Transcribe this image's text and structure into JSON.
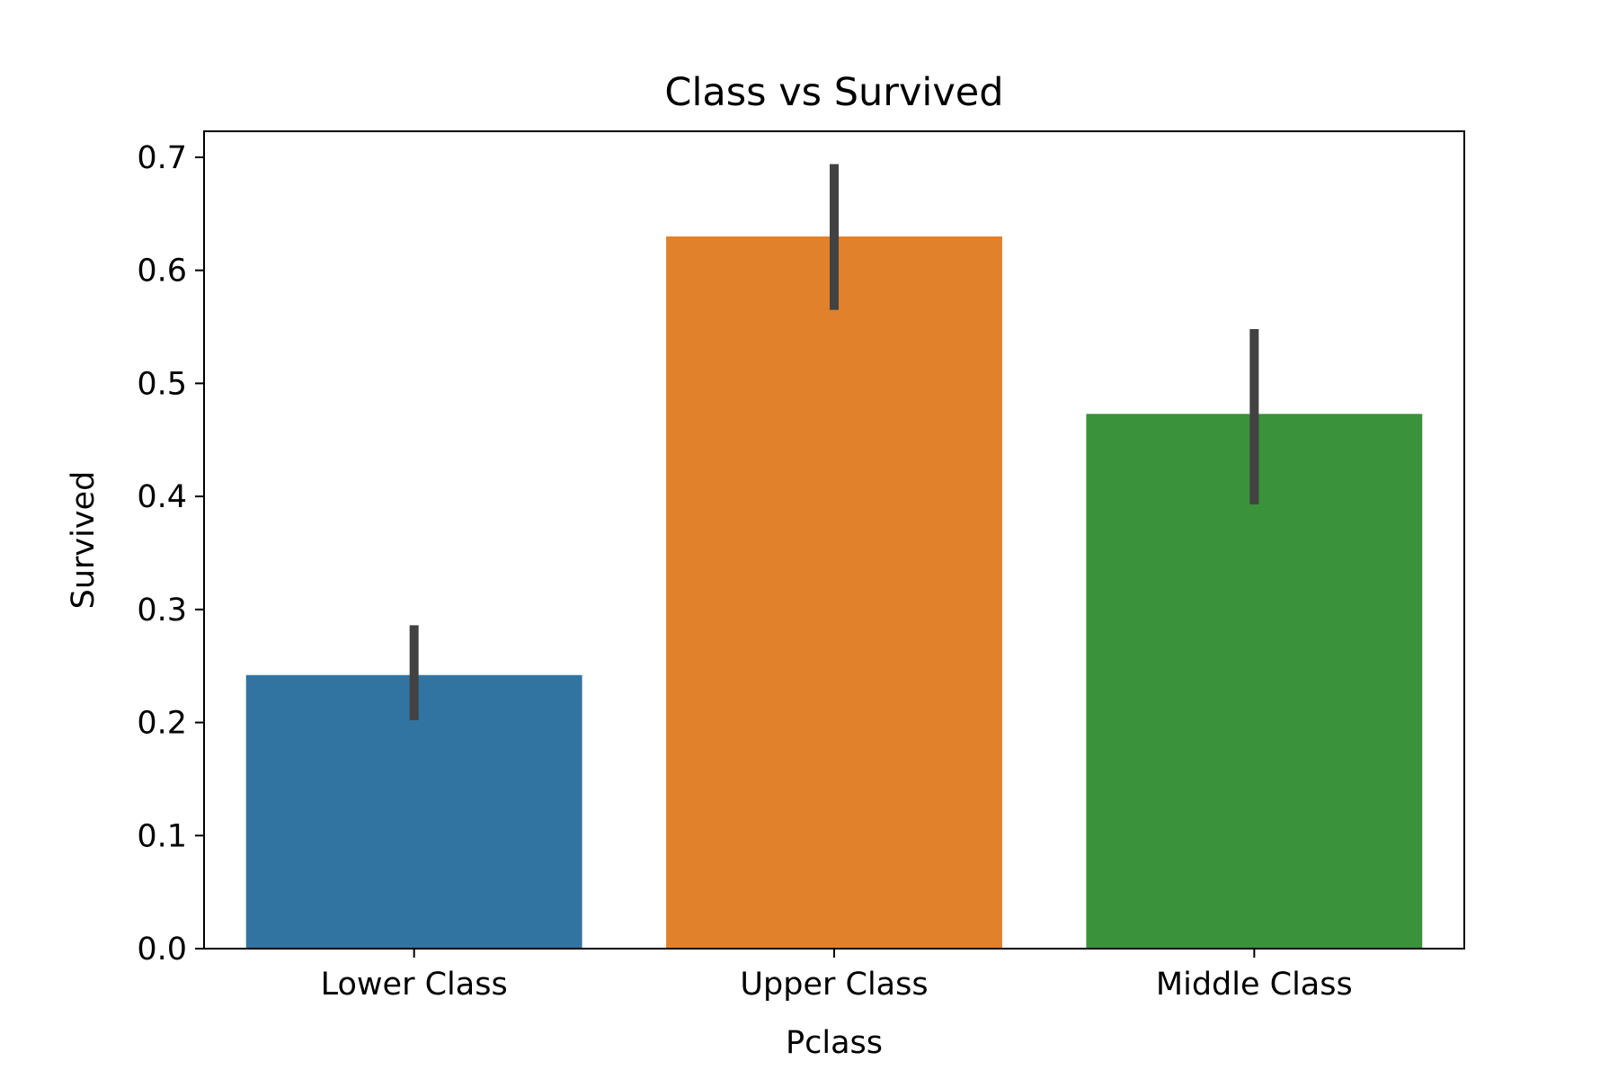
{
  "chart_data": {
    "type": "bar",
    "title": "Class vs Survived",
    "xlabel": "Pclass",
    "ylabel": "Survived",
    "categories": [
      "Lower Class",
      "Upper Class",
      "Middle Class"
    ],
    "values": [
      0.242,
      0.63,
      0.473
    ],
    "errors": [
      [
        0.202,
        0.286
      ],
      [
        0.565,
        0.694
      ],
      [
        0.393,
        0.548
      ]
    ],
    "colors": [
      "#3274a1",
      "#e1812c",
      "#3a923a"
    ],
    "error_color": "#424242",
    "ylim": [
      0,
      0.723
    ],
    "yticks": [
      {
        "value": 0.0,
        "label": "0.0"
      },
      {
        "value": 0.1,
        "label": "0.1"
      },
      {
        "value": 0.2,
        "label": "0.2"
      },
      {
        "value": 0.3,
        "label": "0.3"
      },
      {
        "value": 0.4,
        "label": "0.4"
      },
      {
        "value": 0.5,
        "label": "0.5"
      },
      {
        "value": 0.6,
        "label": "0.6"
      },
      {
        "value": 0.7,
        "label": "0.7"
      }
    ],
    "grid": false,
    "legend": "none"
  }
}
